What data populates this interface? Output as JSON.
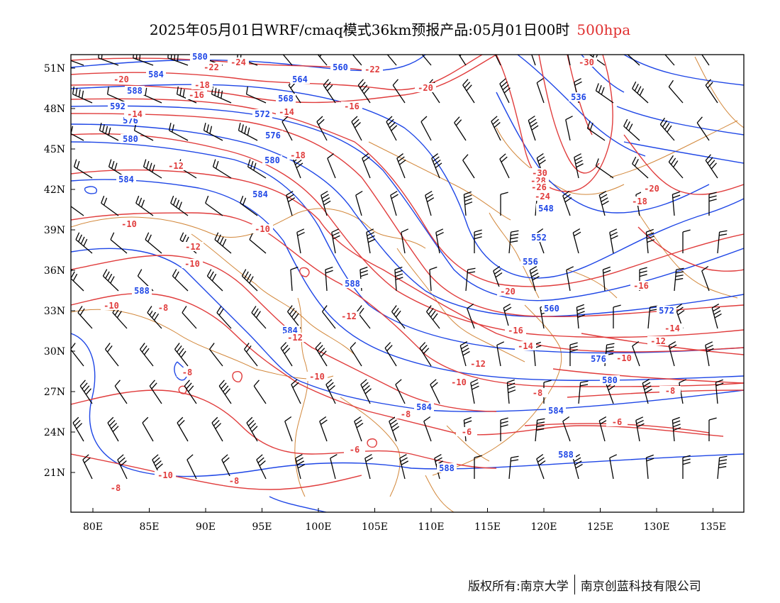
{
  "title": {
    "main": "2025年05月01日WRF/cmaq模式36km预报产品:05月01日00时",
    "level": "500hpa"
  },
  "footer": {
    "rights": "版权所有:南京大学",
    "company": "南京创蓝科技有限公司"
  },
  "axes": {
    "lon_labels": [
      "80E",
      "85E",
      "90E",
      "95E",
      "100E",
      "105E",
      "110E",
      "115E",
      "120E",
      "125E",
      "130E",
      "135E"
    ],
    "lat_labels": [
      "51N",
      "48N",
      "45N",
      "42N",
      "39N",
      "36N",
      "33N",
      "30N",
      "27N",
      "24N",
      "21N"
    ]
  },
  "colors": {
    "height_contour": "#1e46e6",
    "temp_contour": "#e03c3c",
    "coast": "#d2873a",
    "barb": "#000000",
    "level_text": "#e03030"
  },
  "height_labels": [
    "580",
    "584",
    "588",
    "592",
    "576",
    "580",
    "584",
    "588",
    "560",
    "564",
    "568",
    "572",
    "576",
    "580",
    "584",
    "588",
    "584",
    "584",
    "536",
    "548",
    "552",
    "556",
    "560",
    "576",
    "580",
    "584",
    "588",
    "588",
    "572"
  ],
  "temp_labels": [
    "-24",
    "-22",
    "-20",
    "-18",
    "-16",
    "-14",
    "-12",
    "-10",
    "-10",
    "-12",
    "-10",
    "-8",
    "-10",
    "-12",
    "-10",
    "-8",
    "-8",
    "-10",
    "-12",
    "-14",
    "-16",
    "-18",
    "-20",
    "-22",
    "-30",
    "-28",
    "-26",
    "-24",
    "-20",
    "-18",
    "-16",
    "-14",
    "-12",
    "-10",
    "-8",
    "-6",
    "-8",
    "-6",
    "-30",
    "-20",
    "-16",
    "-14",
    "-12",
    "-10",
    "-8",
    "-6",
    "-8"
  ]
}
